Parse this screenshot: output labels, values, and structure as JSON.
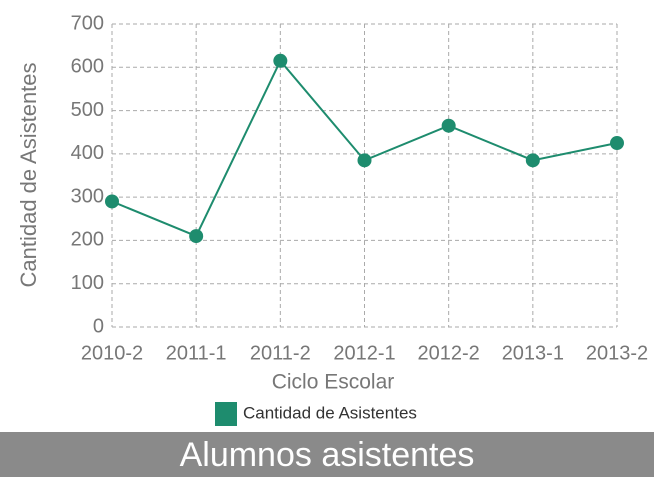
{
  "chart_data": {
    "type": "line",
    "title": "Alumnos asistentes",
    "x_label": "Ciclo Escolar",
    "y_label": "Cantidad de Asistentes",
    "categories": [
      "2010-2",
      "2011-1",
      "2011-2",
      "2012-1",
      "2012-2",
      "2013-1",
      "2013-2"
    ],
    "series": [
      {
        "name": "Cantidad de Asistentes",
        "color": "#1e8c6e",
        "values": [
          290,
          210,
          615,
          385,
          465,
          385,
          425
        ]
      }
    ],
    "ylim": [
      0,
      700
    ],
    "yticks": [
      0,
      100,
      200,
      300,
      400,
      500,
      600,
      700
    ],
    "grid": true
  }
}
